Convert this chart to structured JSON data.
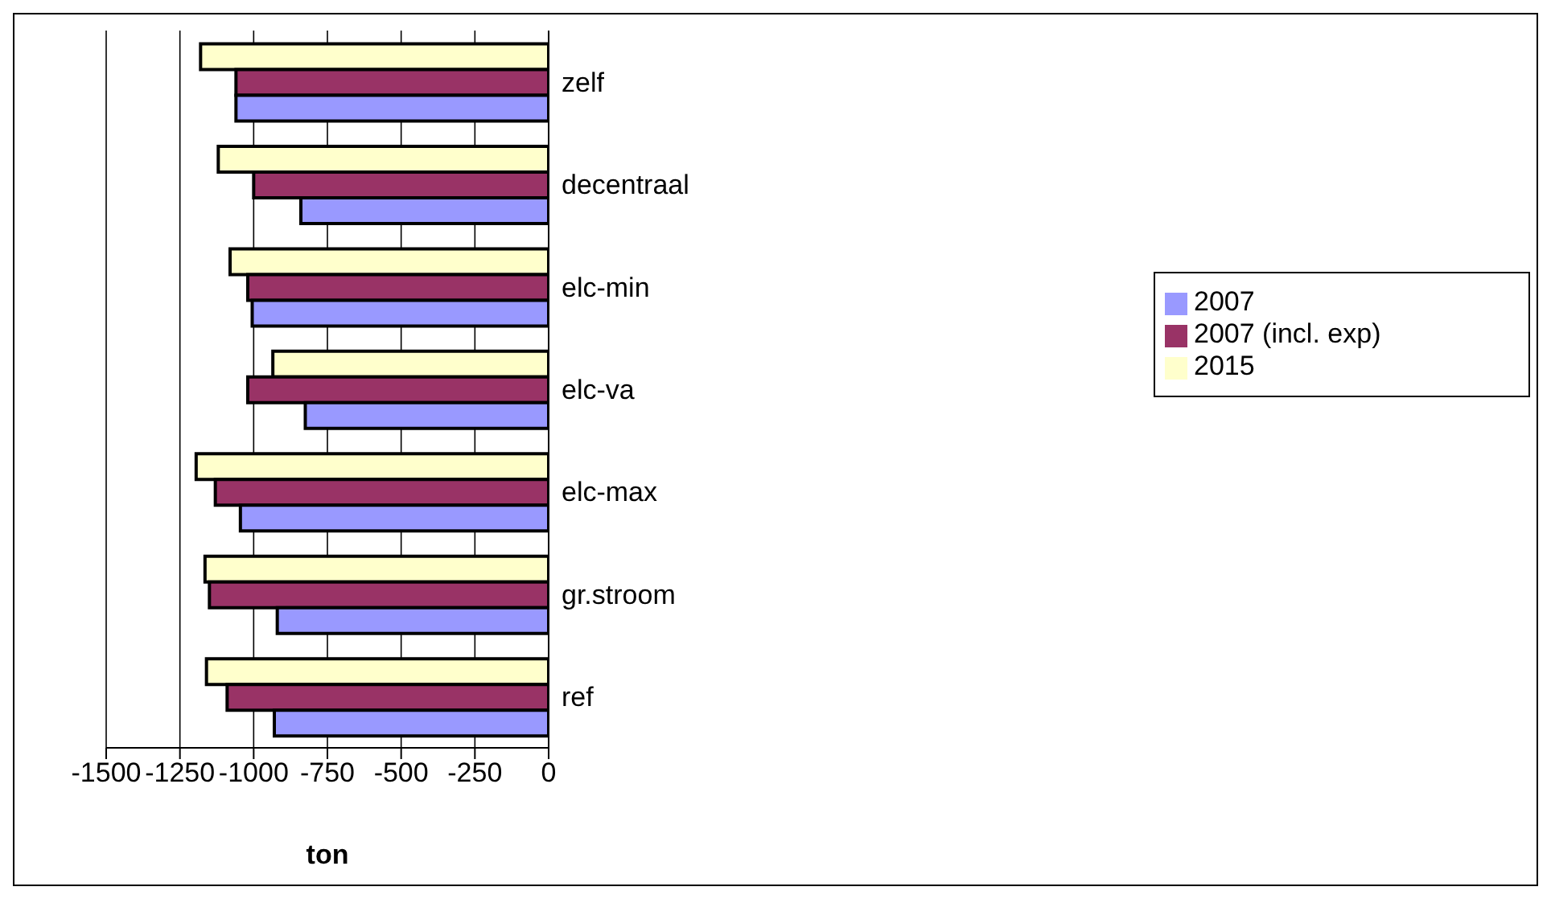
{
  "chart_data": {
    "type": "bar",
    "orientation": "horizontal",
    "xlabel": "ton",
    "categories": [
      "zelf",
      "decentraal",
      "elc-min",
      "elc-va",
      "elc-max",
      "gr.stroom",
      "ref"
    ],
    "series": [
      {
        "name": "2015",
        "color": "#ffffcc",
        "values": [
          -1180,
          -1120,
          -1080,
          -935,
          -1195,
          -1165,
          -1160
        ]
      },
      {
        "name": "2007 (incl. exp)",
        "color": "#993366",
        "values": [
          -1060,
          -1000,
          -1020,
          -1020,
          -1130,
          -1150,
          -1090
        ]
      },
      {
        "name": "2007",
        "color": "#9999ff",
        "values": [
          -1060,
          -840,
          -1005,
          -825,
          -1045,
          -920,
          -930
        ]
      }
    ],
    "xlim": [
      -1500,
      0
    ],
    "xticks": [
      -1500,
      -1250,
      -1000,
      -750,
      -500,
      -250,
      0
    ],
    "grid": "x",
    "legend": "right"
  }
}
